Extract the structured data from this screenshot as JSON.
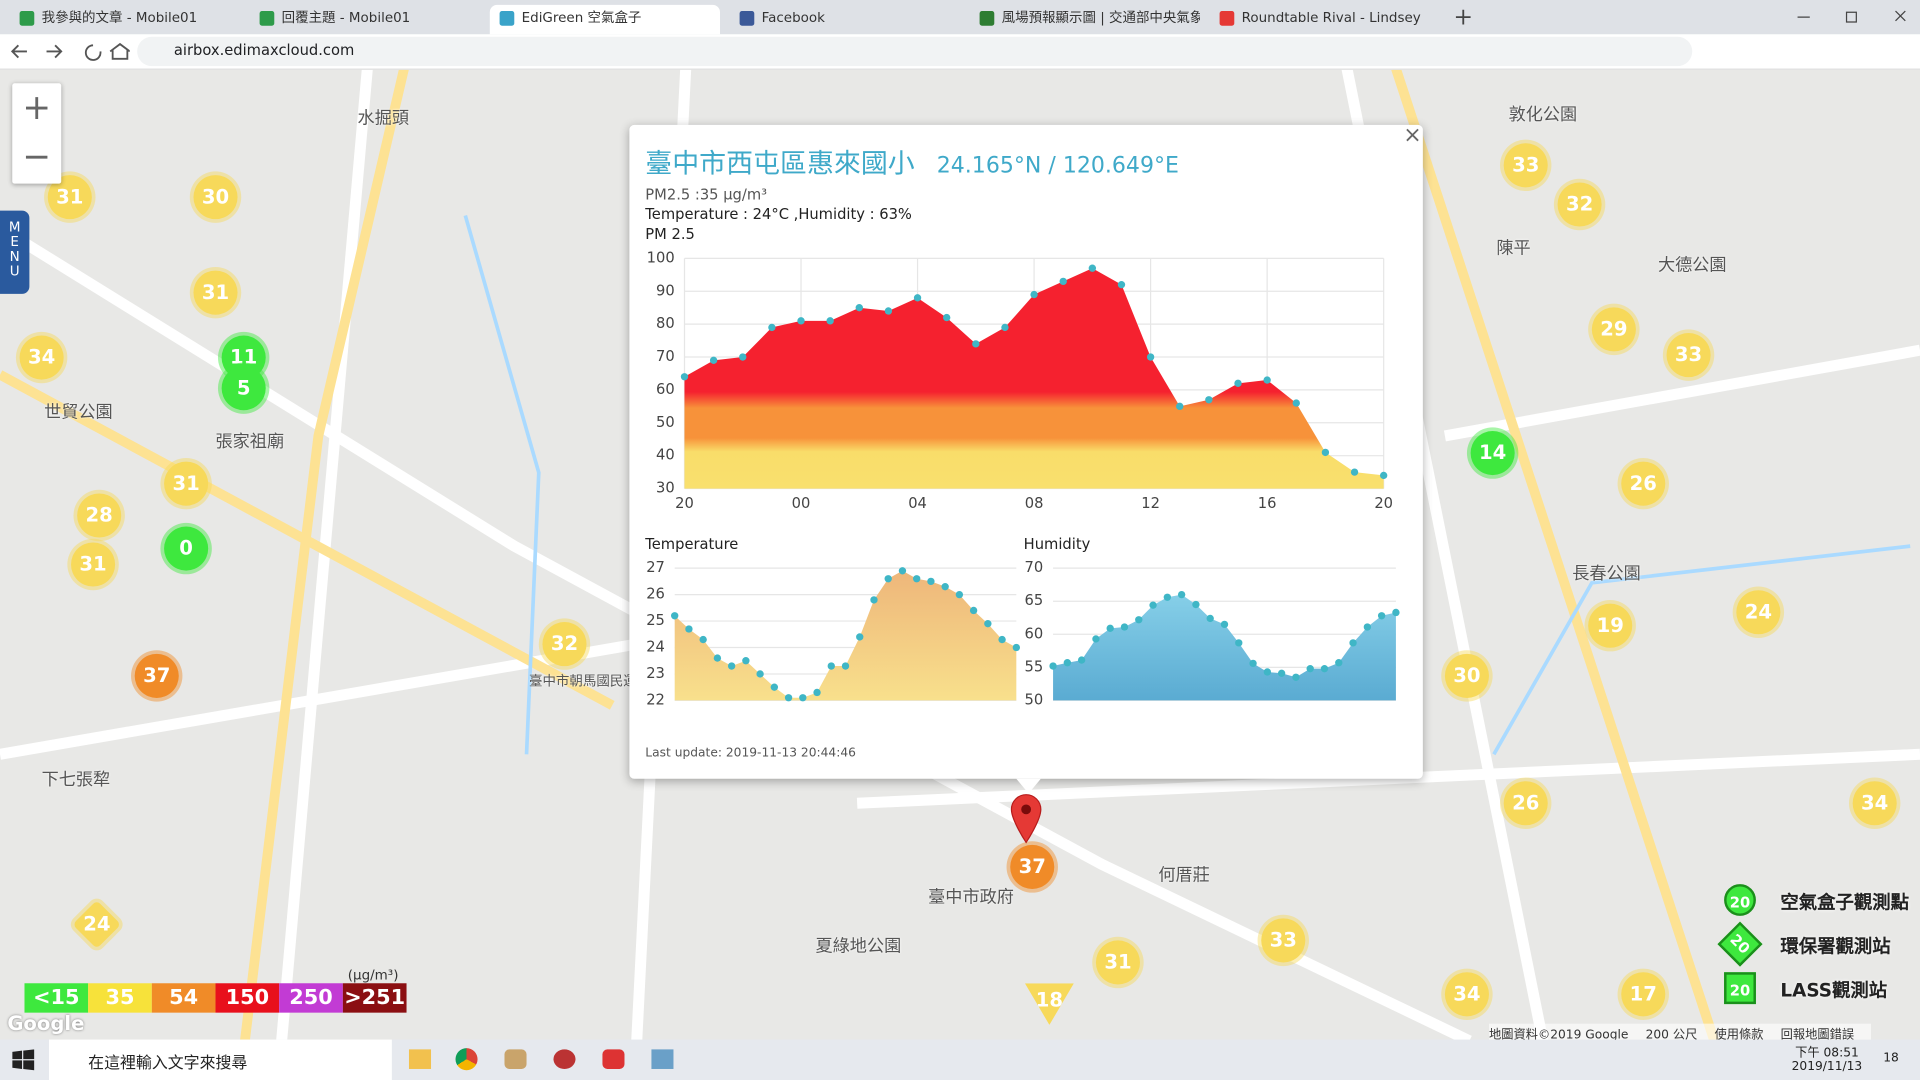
{
  "browser": {
    "tabs": [
      "我參與的文章 - Mobile01",
      "回覆主題 - Mobile01",
      "EdiGreen 空氣盒子",
      "Facebook",
      "風場預報顯示圖 | 交通部中央氣象...",
      "Roundtable Rival - Lindsey"
    ],
    "address": "airbox.edimaxcloud.com"
  },
  "map": {
    "menu": "MENU",
    "zoom_in": "+",
    "zoom_out": "−",
    "markers": [
      {
        "value": 31
      },
      {
        "value": 30
      },
      {
        "value": 31
      },
      {
        "value": 11
      },
      {
        "value": 5
      },
      {
        "value": 34
      },
      {
        "value": 31
      },
      {
        "value": 28
      },
      {
        "value": 0
      },
      {
        "value": 31
      },
      {
        "value": 37
      },
      {
        "value": 32
      },
      {
        "value": 33
      },
      {
        "value": 32
      },
      {
        "value": 29
      },
      {
        "value": 33
      },
      {
        "value": 14
      },
      {
        "value": 26
      },
      {
        "value": 24
      },
      {
        "value": 19
      },
      {
        "value": 30
      },
      {
        "value": 26
      },
      {
        "value": 34
      },
      {
        "value": 33
      },
      {
        "value": 31
      },
      {
        "value": 34
      },
      {
        "value": 17
      },
      {
        "value": 37
      },
      {
        "value": 24
      },
      {
        "value": 18
      }
    ],
    "labels": [
      "水掘頭",
      "世貿公園",
      "張家祖廟",
      "下七張犂",
      "陳平",
      "敦化公園",
      "何厝莊",
      "臺中市政府",
      "夏綠地公園",
      "臺中市朝馬國民運動中心",
      "大德公園",
      "長春公園"
    ],
    "legend": {
      "unit": "(μg/m³)",
      "levels": [
        "<15",
        "35",
        "54",
        "150",
        "250",
        ">251"
      ]
    },
    "station_legend": [
      {
        "icon": "20",
        "label": "空氣盒子觀測點"
      },
      {
        "icon": "20",
        "label": "環保署觀測站"
      },
      {
        "icon": "20",
        "label": "LASS觀測站"
      }
    ],
    "footer": [
      "地圖資料©2019 Google",
      "200 公尺",
      "使用條款",
      "回報地圖錯誤"
    ]
  },
  "popup": {
    "close": "×",
    "title": "臺中市西屯區惠來國小",
    "coords": "24.165°N / 120.649°E",
    "pm_text": "PM2.5 :35 μg/m³",
    "env_text": "Temperature : 24°C ,Humidity : 63%",
    "last_update": "Last update: 2019-11-13 20:44:46"
  },
  "chart_data": [
    {
      "type": "area",
      "title": "PM 2.5",
      "color": "#3fb6c6",
      "values": [
        64,
        69,
        70,
        79,
        81,
        81,
        85,
        84,
        88,
        82,
        74,
        79,
        89,
        93,
        97,
        92,
        70,
        55,
        57,
        62,
        63,
        56,
        41,
        35,
        34
      ],
      "xlim": [
        0,
        24
      ],
      "xticks": [
        {
          "value": 0,
          "label": "20"
        },
        {
          "value": 4,
          "label": "00"
        },
        {
          "value": 8,
          "label": "04"
        },
        {
          "value": 12,
          "label": "08"
        },
        {
          "value": 16,
          "label": "12"
        },
        {
          "value": 20,
          "label": "16"
        },
        {
          "value": 24,
          "label": "20"
        }
      ],
      "ylim": [
        30,
        100
      ],
      "yticks": [
        30,
        40,
        50,
        60,
        70,
        80,
        90,
        100
      ],
      "grid": true
    },
    {
      "type": "area",
      "title": "Temperature",
      "color": "#3fb6c6",
      "values": [
        25.2,
        24.7,
        24.3,
        23.6,
        23.3,
        23.5,
        23.0,
        22.5,
        22.1,
        22.1,
        22.3,
        23.3,
        23.3,
        24.4,
        25.8,
        26.6,
        26.9,
        26.6,
        26.5,
        26.3,
        26.0,
        25.4,
        24.9,
        24.3,
        24.0
      ],
      "xlim": [
        0,
        24
      ],
      "ylim": [
        22,
        27
      ],
      "yticks": [
        22,
        23,
        24,
        25,
        26,
        27
      ],
      "grid": true
    },
    {
      "type": "area",
      "title": "Humidity",
      "color": "#3fb6c6",
      "values": [
        55.2,
        55.7,
        56.1,
        59.3,
        60.9,
        61.1,
        62.2,
        64.4,
        65.6,
        66.0,
        64.5,
        62.4,
        61.5,
        58.7,
        55.6,
        54.3,
        54.1,
        53.5,
        54.8,
        54.8,
        55.7,
        58.7,
        61.1,
        62.8,
        63.3
      ],
      "xlim": [
        0,
        24
      ],
      "ylim": [
        50,
        70
      ],
      "yticks": [
        50,
        55,
        60,
        65,
        70
      ],
      "grid": true
    }
  ],
  "taskbar": {
    "search": "在這裡輸入文字來搜尋",
    "time": "下午 08:51",
    "date": "2019/11/13",
    "notifications": "18"
  }
}
